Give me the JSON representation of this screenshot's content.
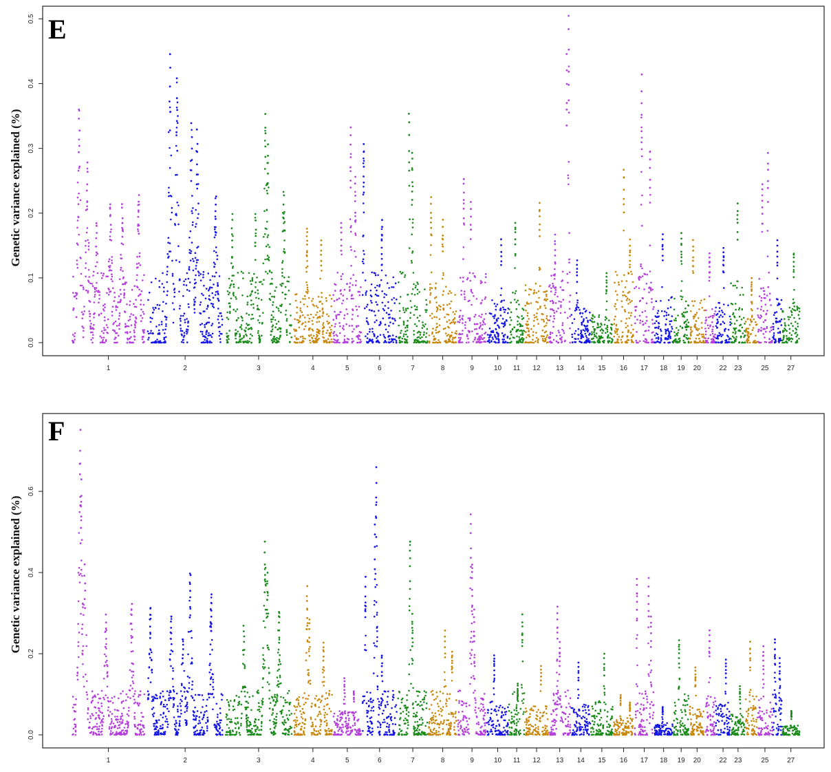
{
  "colors": {
    "palette": [
      "#b43fdc",
      "#1414e6",
      "#1a8a1a",
      "#c8870a"
    ]
  },
  "chart_data": [
    {
      "type": "scatter",
      "panel_label": "E",
      "ylabel": "Genetic variance explained (%)",
      "ylim": [
        0,
        0.51
      ],
      "yticks": [
        "0.0",
        "0.1",
        "0.2",
        "0.3",
        "0.4",
        "0.5"
      ],
      "ytick_values": [
        0,
        0.1,
        0.2,
        0.3,
        0.4,
        0.5
      ],
      "chromosome_labels": [
        "1",
        "2",
        "3",
        "4",
        "5",
        "6",
        "7",
        "8",
        "9",
        "10",
        "11",
        "12",
        "13",
        "14",
        "15",
        "16",
        "17",
        "18",
        "19",
        "20",
        "22",
        "23",
        "25",
        "27"
      ],
      "chromosomes": [
        {
          "chr": "1",
          "start": 0.0,
          "end": 1.61,
          "label": "1",
          "color": 0,
          "peaks": [
            [
              0.18,
              0.37
            ],
            [
              0.35,
              0.28
            ],
            [
              0.55,
              0.19
            ],
            [
              0.85,
              0.22
            ],
            [
              1.1,
              0.22
            ],
            [
              1.45,
              0.23
            ]
          ]
        },
        {
          "chr": "2",
          "start": 1.61,
          "end": 3.28,
          "label": "2",
          "color": 1,
          "peaks": [
            [
              2.12,
              0.45
            ],
            [
              2.27,
              0.41
            ],
            [
              2.58,
              0.34
            ],
            [
              2.7,
              0.33
            ],
            [
              3.1,
              0.23
            ]
          ]
        },
        {
          "chr": "3",
          "start": 3.28,
          "end": 4.75,
          "label": "3",
          "color": 2,
          "peaks": [
            [
              3.45,
              0.2
            ],
            [
              3.95,
              0.2
            ],
            [
              4.16,
              0.36
            ],
            [
              4.21,
              0.31
            ],
            [
              4.55,
              0.24
            ]
          ]
        },
        {
          "chr": "4",
          "start": 4.75,
          "end": 5.6,
          "label": "4",
          "color": 3,
          "peaks": [
            [
              5.05,
              0.18
            ],
            [
              5.35,
              0.16
            ]
          ]
        },
        {
          "chr": "5",
          "start": 5.6,
          "end": 6.22,
          "label": "5",
          "color": 0,
          "peaks": [
            [
              5.78,
              0.19
            ],
            [
              5.98,
              0.34
            ],
            [
              6.08,
              0.26
            ]
          ]
        },
        {
          "chr": "6",
          "start": 6.22,
          "end": 6.98,
          "label": "6",
          "color": 1,
          "peaks": [
            [
              6.26,
              0.31
            ],
            [
              6.65,
              0.19
            ]
          ]
        },
        {
          "chr": "7",
          "start": 6.98,
          "end": 7.64,
          "label": "7",
          "color": 2,
          "peaks": [
            [
              7.23,
              0.36
            ],
            [
              7.3,
              0.3
            ]
          ]
        },
        {
          "chr": "8",
          "start": 7.64,
          "end": 8.26,
          "label": "8",
          "color": 3,
          "peaks": [
            [
              7.7,
              0.23
            ],
            [
              7.95,
              0.19
            ]
          ]
        },
        {
          "chr": "9",
          "start": 8.26,
          "end": 8.89,
          "label": "9",
          "color": 0,
          "peaks": [
            [
              8.4,
              0.26
            ],
            [
              8.55,
              0.22
            ]
          ]
        },
        {
          "chr": "10",
          "start": 8.89,
          "end": 9.36,
          "label": "10",
          "color": 1,
          "peaks": [
            [
              9.2,
              0.16
            ]
          ]
        },
        {
          "chr": "11",
          "start": 9.36,
          "end": 9.7,
          "label": "11",
          "color": 2,
          "peaks": [
            [
              9.5,
              0.19
            ]
          ]
        },
        {
          "chr": "12",
          "start": 9.7,
          "end": 10.21,
          "label": "12",
          "color": 3,
          "peaks": [
            [
              10.02,
              0.22
            ]
          ]
        },
        {
          "chr": "13",
          "start": 10.21,
          "end": 10.69,
          "label": "13",
          "color": 0,
          "peaks": [
            [
              10.64,
              0.51
            ],
            [
              10.6,
              0.45
            ],
            [
              10.35,
              0.17
            ]
          ]
        },
        {
          "chr": "14",
          "start": 10.69,
          "end": 11.11,
          "label": "14",
          "color": 1,
          "peaks": [
            [
              10.82,
              0.13
            ]
          ]
        },
        {
          "chr": "15",
          "start": 11.11,
          "end": 11.59,
          "label": "15",
          "color": 2,
          "peaks": [
            [
              11.45,
              0.11
            ]
          ]
        },
        {
          "chr": "16",
          "start": 11.59,
          "end": 12.04,
          "label": "16",
          "color": 3,
          "peaks": [
            [
              11.82,
              0.27
            ],
            [
              11.95,
              0.16
            ]
          ]
        },
        {
          "chr": "17",
          "start": 12.04,
          "end": 12.47,
          "label": "17",
          "color": 0,
          "peaks": [
            [
              12.2,
              0.42
            ],
            [
              12.38,
              0.3
            ]
          ]
        },
        {
          "chr": "18",
          "start": 12.47,
          "end": 12.87,
          "label": "18",
          "color": 1,
          "peaks": [
            [
              12.65,
              0.17
            ]
          ]
        },
        {
          "chr": "19",
          "start": 12.87,
          "end": 13.22,
          "label": "19",
          "color": 2,
          "peaks": [
            [
              13.05,
              0.17
            ]
          ]
        },
        {
          "chr": "20",
          "start": 13.22,
          "end": 13.55,
          "label": "20",
          "color": 3,
          "peaks": [
            [
              13.3,
              0.16
            ]
          ]
        },
        {
          "chr": "21",
          "start": 13.55,
          "end": 13.78,
          "label": "",
          "color": 0,
          "peaks": [
            [
              13.65,
              0.14
            ]
          ]
        },
        {
          "chr": "22",
          "start": 13.78,
          "end": 14.1,
          "label": "22",
          "color": 1,
          "peaks": [
            [
              13.95,
              0.15
            ]
          ]
        },
        {
          "chr": "23",
          "start": 14.1,
          "end": 14.42,
          "label": "23",
          "color": 2,
          "peaks": [
            [
              14.25,
              0.22
            ]
          ]
        },
        {
          "chr": "24",
          "start": 14.42,
          "end": 14.67,
          "label": "",
          "color": 3,
          "peaks": [
            [
              14.55,
              0.1
            ]
          ]
        },
        {
          "chr": "25",
          "start": 14.67,
          "end": 15.0,
          "label": "25",
          "color": 0,
          "peaks": [
            [
              14.9,
              0.3
            ],
            [
              14.78,
              0.25
            ]
          ]
        },
        {
          "chr": "26",
          "start": 15.0,
          "end": 15.2,
          "label": "",
          "color": 1,
          "peaks": [
            [
              15.1,
              0.16
            ]
          ]
        },
        {
          "chr": "27",
          "start": 15.2,
          "end": 15.58,
          "label": "27",
          "color": 2,
          "peaks": [
            [
              15.45,
              0.14
            ]
          ]
        }
      ],
      "xlim": [
        -0.6,
        16.1
      ]
    },
    {
      "type": "scatter",
      "panel_label": "F",
      "ylabel": "Genetic variance explained (%)",
      "ylim": [
        0,
        0.78
      ],
      "yticks": [
        "0.0",
        "0.2",
        "0.4",
        "0.6"
      ],
      "ytick_values": [
        0,
        0.2,
        0.4,
        0.6
      ],
      "chromosome_labels": [
        "1",
        "2",
        "3",
        "4",
        "5",
        "6",
        "7",
        "8",
        "9",
        "10",
        "11",
        "12",
        "13",
        "14",
        "15",
        "16",
        "17",
        "18",
        "19",
        "20",
        "22",
        "23",
        "25",
        "27"
      ],
      "chromosomes": [
        {
          "chr": "1",
          "start": 0.0,
          "end": 1.61,
          "label": "1",
          "color": 0,
          "peaks": [
            [
              0.2,
              0.76
            ],
            [
              0.22,
              0.64
            ],
            [
              0.3,
              0.42
            ],
            [
              0.75,
              0.3
            ],
            [
              1.3,
              0.33
            ]
          ]
        },
        {
          "chr": "2",
          "start": 1.61,
          "end": 3.28,
          "label": "2",
          "color": 1,
          "peaks": [
            [
              1.7,
              0.32
            ],
            [
              2.15,
              0.3
            ],
            [
              2.55,
              0.4
            ],
            [
              3.0,
              0.35
            ],
            [
              2.4,
              0.24
            ]
          ]
        },
        {
          "chr": "3",
          "start": 3.28,
          "end": 4.75,
          "label": "3",
          "color": 2,
          "peaks": [
            [
              3.7,
              0.27
            ],
            [
              4.15,
              0.48
            ],
            [
              4.2,
              0.4
            ],
            [
              4.45,
              0.31
            ]
          ]
        },
        {
          "chr": "4",
          "start": 4.75,
          "end": 5.6,
          "label": "4",
          "color": 3,
          "peaks": [
            [
              5.05,
              0.37
            ],
            [
              5.1,
              0.29
            ],
            [
              5.4,
              0.23
            ]
          ]
        },
        {
          "chr": "5",
          "start": 5.6,
          "end": 6.22,
          "label": "5",
          "color": 0,
          "peaks": [
            [
              5.85,
              0.14
            ],
            [
              6.05,
              0.11
            ]
          ]
        },
        {
          "chr": "6",
          "start": 6.22,
          "end": 6.98,
          "label": "6",
          "color": 1,
          "peaks": [
            [
              6.53,
              0.67
            ],
            [
              6.5,
              0.52
            ],
            [
              6.3,
              0.39
            ],
            [
              6.65,
              0.2
            ]
          ]
        },
        {
          "chr": "7",
          "start": 6.98,
          "end": 7.64,
          "label": "7",
          "color": 2,
          "peaks": [
            [
              7.25,
              0.49
            ],
            [
              7.3,
              0.3
            ]
          ]
        },
        {
          "chr": "8",
          "start": 7.64,
          "end": 8.26,
          "label": "8",
          "color": 3,
          "peaks": [
            [
              8.0,
              0.26
            ],
            [
              8.15,
              0.21
            ]
          ]
        },
        {
          "chr": "9",
          "start": 8.26,
          "end": 8.89,
          "label": "9",
          "color": 0,
          "peaks": [
            [
              8.55,
              0.56
            ],
            [
              8.58,
              0.43
            ],
            [
              8.62,
              0.31
            ]
          ]
        },
        {
          "chr": "10",
          "start": 8.89,
          "end": 9.36,
          "label": "10",
          "color": 1,
          "peaks": [
            [
              9.05,
              0.2
            ]
          ]
        },
        {
          "chr": "11",
          "start": 9.36,
          "end": 9.7,
          "label": "11",
          "color": 2,
          "peaks": [
            [
              9.65,
              0.3
            ],
            [
              9.55,
              0.13
            ]
          ]
        },
        {
          "chr": "12",
          "start": 9.7,
          "end": 10.21,
          "label": "12",
          "color": 3,
          "peaks": [
            [
              10.05,
              0.17
            ]
          ]
        },
        {
          "chr": "13",
          "start": 10.21,
          "end": 10.69,
          "label": "13",
          "color": 0,
          "peaks": [
            [
              10.4,
              0.32
            ],
            [
              10.45,
              0.23
            ]
          ]
        },
        {
          "chr": "14",
          "start": 10.69,
          "end": 11.11,
          "label": "14",
          "color": 1,
          "peaks": [
            [
              10.85,
              0.18
            ]
          ]
        },
        {
          "chr": "15",
          "start": 11.11,
          "end": 11.59,
          "label": "15",
          "color": 2,
          "peaks": [
            [
              11.4,
              0.2
            ]
          ]
        },
        {
          "chr": "16",
          "start": 11.59,
          "end": 12.04,
          "label": "16",
          "color": 3,
          "peaks": [
            [
              11.75,
              0.1
            ],
            [
              11.95,
              0.08
            ]
          ]
        },
        {
          "chr": "17",
          "start": 12.04,
          "end": 12.47,
          "label": "17",
          "color": 0,
          "peaks": [
            [
              12.1,
              0.39
            ],
            [
              12.35,
              0.39
            ],
            [
              12.4,
              0.3
            ]
          ]
        },
        {
          "chr": "18",
          "start": 12.47,
          "end": 12.87,
          "label": "18",
          "color": 1,
          "peaks": [
            [
              12.65,
              0.07
            ]
          ]
        },
        {
          "chr": "19",
          "start": 12.87,
          "end": 13.22,
          "label": "19",
          "color": 2,
          "peaks": [
            [
              13.0,
              0.24
            ]
          ]
        },
        {
          "chr": "20",
          "start": 13.22,
          "end": 13.55,
          "label": "20",
          "color": 3,
          "peaks": [
            [
              13.35,
              0.17
            ]
          ]
        },
        {
          "chr": "21",
          "start": 13.55,
          "end": 13.78,
          "label": "",
          "color": 0,
          "peaks": [
            [
              13.65,
              0.26
            ]
          ]
        },
        {
          "chr": "22",
          "start": 13.78,
          "end": 14.1,
          "label": "22",
          "color": 1,
          "peaks": [
            [
              14.0,
              0.19
            ]
          ]
        },
        {
          "chr": "23",
          "start": 14.1,
          "end": 14.42,
          "label": "23",
          "color": 2,
          "peaks": [
            [
              14.3,
              0.12
            ]
          ]
        },
        {
          "chr": "24",
          "start": 14.42,
          "end": 14.67,
          "label": "",
          "color": 3,
          "peaks": [
            [
              14.52,
              0.23
            ]
          ]
        },
        {
          "chr": "25",
          "start": 14.67,
          "end": 15.0,
          "label": "25",
          "color": 0,
          "peaks": [
            [
              14.8,
              0.22
            ]
          ]
        },
        {
          "chr": "26",
          "start": 15.0,
          "end": 15.2,
          "label": "",
          "color": 1,
          "peaks": [
            [
              15.05,
              0.24
            ],
            [
              15.15,
              0.19
            ]
          ]
        },
        {
          "chr": "27",
          "start": 15.2,
          "end": 15.58,
          "label": "27",
          "color": 2,
          "peaks": [
            [
              15.4,
              0.06
            ]
          ]
        }
      ],
      "xlim": [
        -0.6,
        16.1
      ]
    }
  ]
}
